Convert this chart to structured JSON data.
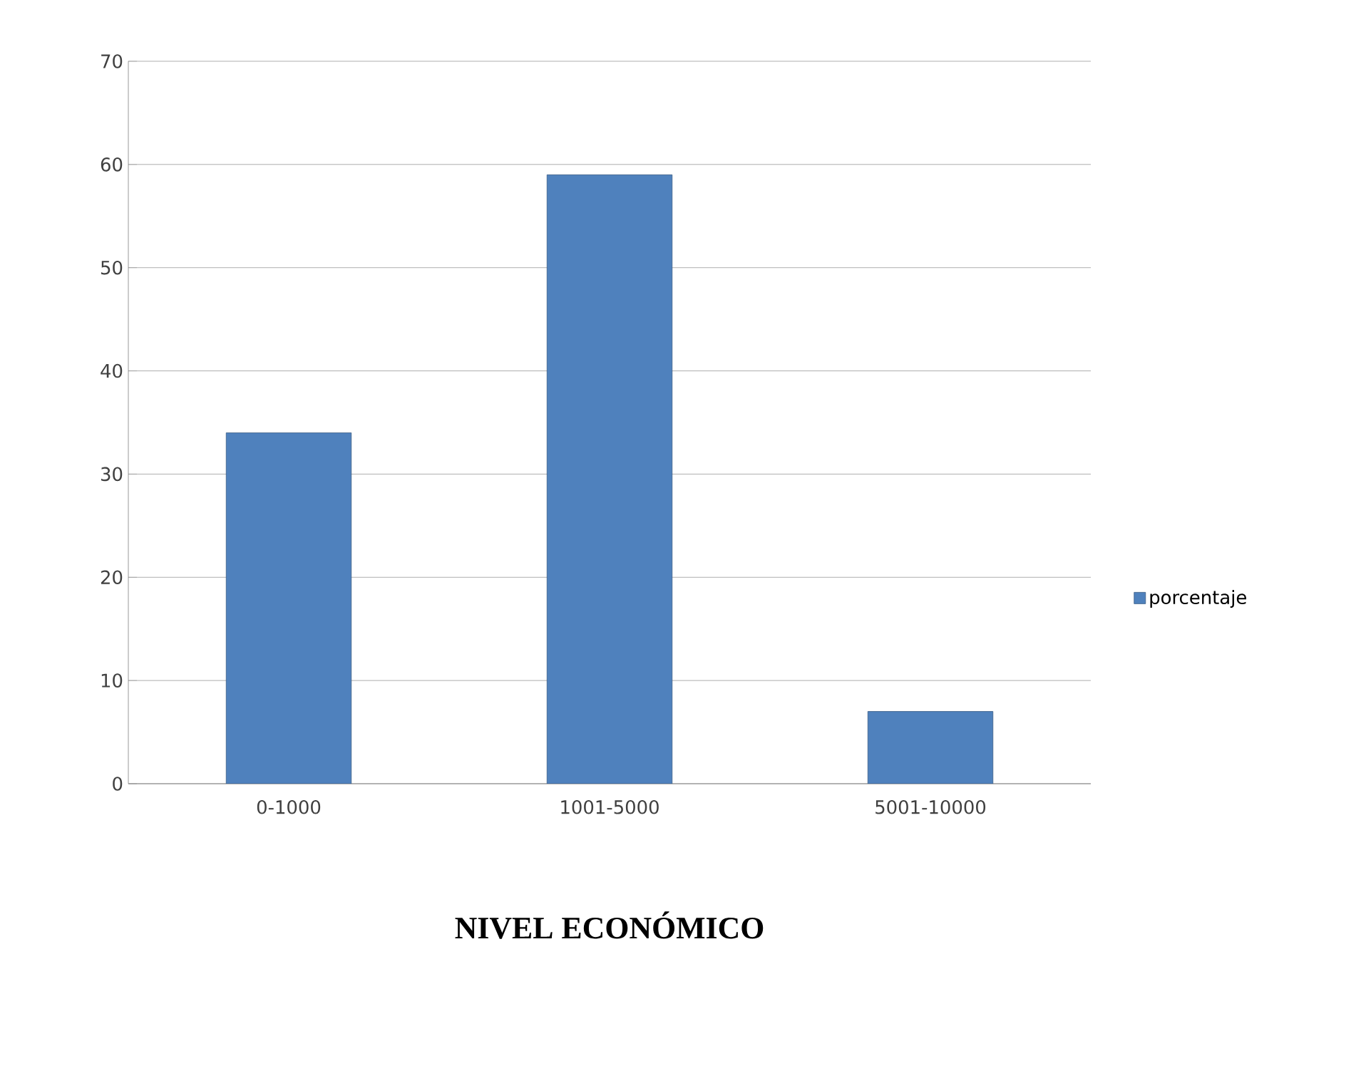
{
  "chart_data": {
    "type": "bar",
    "xlabel": "NIVEL ECONÓMICO",
    "categories": [
      "0-1000",
      "1001-5000",
      "5001-10000"
    ],
    "series": [
      {
        "name": "porcentaje",
        "color": "#4f81bd",
        "values": [
          34,
          59,
          7
        ]
      }
    ],
    "ylim": [
      0,
      70
    ],
    "yticks": [
      0,
      10,
      20,
      30,
      40,
      50,
      60,
      70
    ],
    "grid": "y",
    "legend": "right"
  }
}
